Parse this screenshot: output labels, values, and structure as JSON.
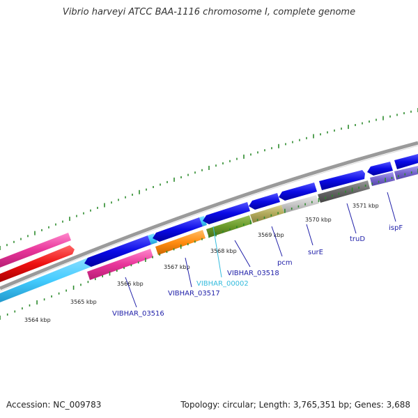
{
  "title": "Vibrio harveyi ATCC BAA-1116 chromosome I, complete genome",
  "accession": "Accession: NC_009783",
  "summary": "Topology: circular; Length: 3,765,351 bp; Genes: 3,688",
  "scale_labels": [
    "3564 kbp",
    "3565 kbp",
    "3566 kbp",
    "3567 kbp",
    "3568 kbp",
    "3569 kbp",
    "3570 kbp",
    "3571 kbp"
  ],
  "gene_labels": [
    "VIBHAR_03516",
    "VIBHAR_03517",
    "VIBHAR_00002",
    "VIBHAR_03518",
    "pcm",
    "surE",
    "truD",
    "ispF"
  ],
  "colors": {
    "backbone": "#8c8c8c",
    "cds": "#0a0ae6",
    "cyan_band": "#44ccff",
    "scale_tick": "#2c8a2c",
    "label_blue": "#1e1ea8",
    "label_cyan": "#33bbdd",
    "magenta": "#e8359a",
    "red": "#ee1111",
    "orange": "#ff8c10",
    "olive_green": "#6a9a2a",
    "olive": "#b0a85a",
    "light_gray": "#c8c8c8",
    "dark_gray": "#666666",
    "purple": "#7766cc"
  }
}
